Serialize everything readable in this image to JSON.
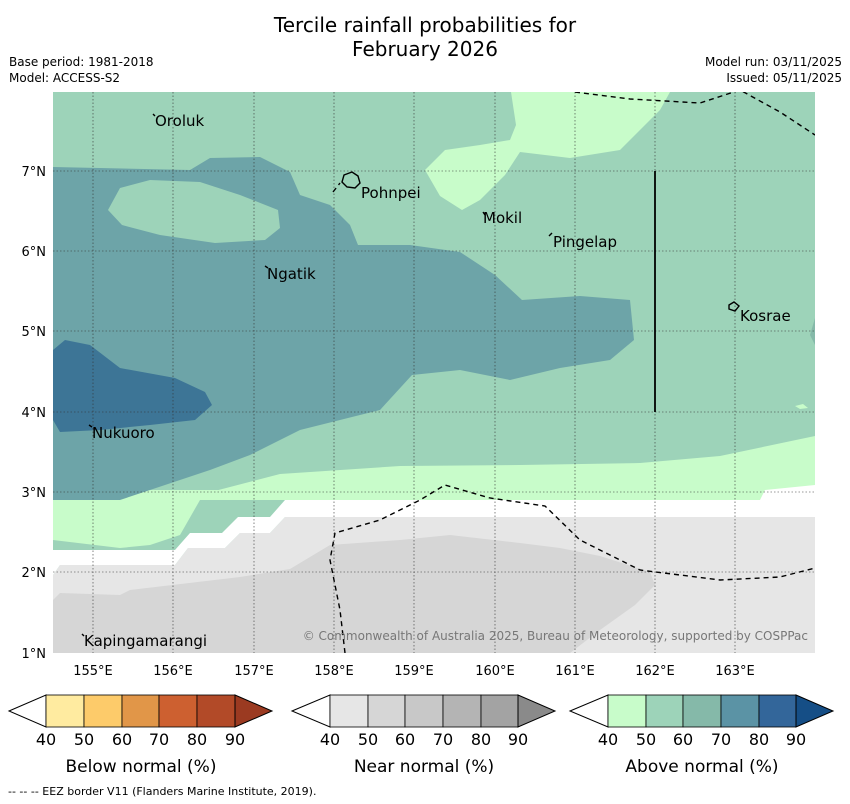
{
  "title": {
    "line1": "Tercile rainfall probabilities for",
    "line2": "February 2026"
  },
  "meta_left": {
    "base_period": "Base period: 1981-2018",
    "model": "Model: ACCESS-S2"
  },
  "meta_right": {
    "model_run": "Model run: 03/11/2025",
    "issued": "Issued: 05/11/2025"
  },
  "map": {
    "lon_ticks": [
      "155°E",
      "156°E",
      "157°E",
      "158°E",
      "159°E",
      "160°E",
      "161°E",
      "162°E",
      "163°E"
    ],
    "lat_ticks": [
      "7°N",
      "6°N",
      "5°N",
      "4°N",
      "3°N",
      "2°N",
      "1°N"
    ],
    "places": {
      "oroluk": "Oroluk",
      "pohnpei": "Pohnpei",
      "mokil": "Mokil",
      "pingelap": "Pingelap",
      "ngatik": "Ngatik",
      "kosrae": "Kosrae",
      "nukuoro": "Nukuoro",
      "kapingamarangi": "Kapingamarangi"
    },
    "copyright": "© Commonwealth of Australia 2025, Bureau of Meteorology, supported by COSPPac"
  },
  "legends": {
    "below": {
      "label": "Below normal (%)",
      "ticks": [
        "40",
        "50",
        "60",
        "70",
        "80",
        "90"
      ],
      "colors": [
        "#ffeba0",
        "#fdcb6a",
        "#e19648",
        "#cd6030",
        "#b24a28",
        "#9b3a21"
      ]
    },
    "near": {
      "label": "Near normal (%)",
      "ticks": [
        "40",
        "50",
        "60",
        "70",
        "80",
        "90"
      ],
      "colors": [
        "#e6e6e6",
        "#d6d6d6",
        "#c8c8c8",
        "#b4b4b4",
        "#a3a3a3",
        "#8a8a8a"
      ]
    },
    "above": {
      "label": "Above normal (%)",
      "ticks": [
        "40",
        "50",
        "60",
        "70",
        "80",
        "90"
      ],
      "colors": [
        "#c8fcca",
        "#9dd3b9",
        "#85b9a9",
        "#5b93a5",
        "#33669a",
        "#154e86"
      ]
    }
  },
  "footer": "--  --  -- EEZ border V11 (Flanders Marine Institute, 2019)."
}
